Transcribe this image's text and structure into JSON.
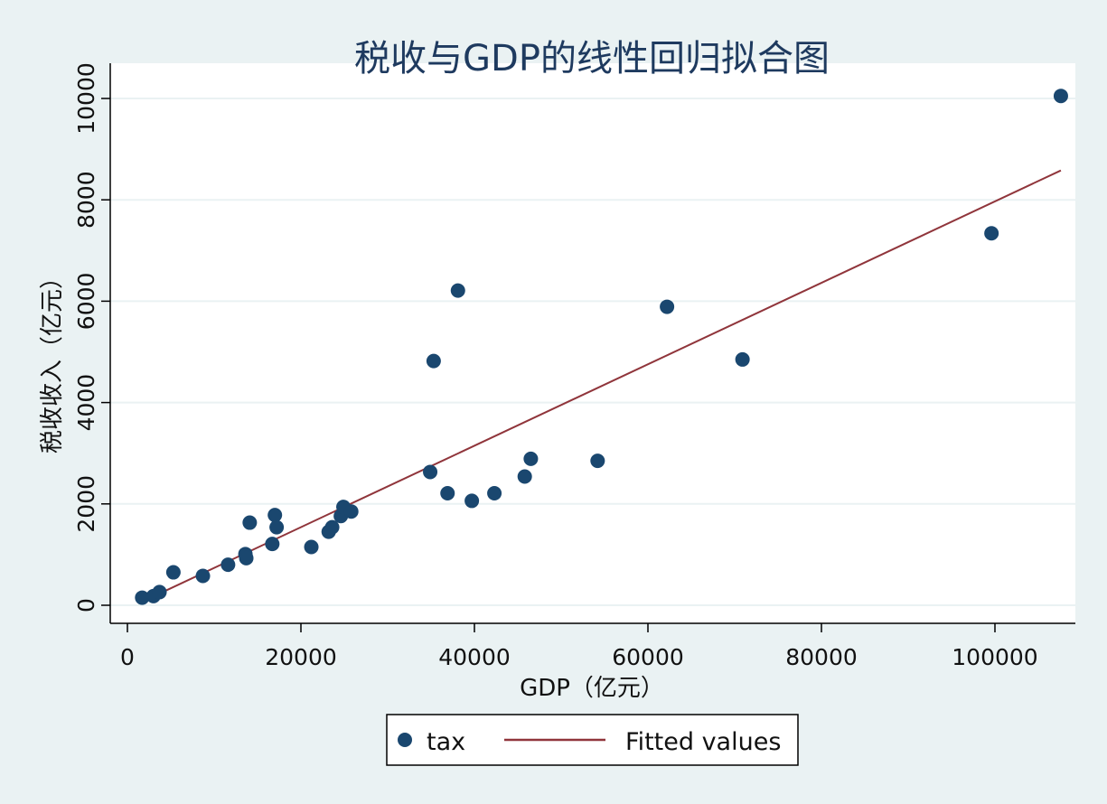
{
  "chart_data": {
    "type": "scatter",
    "title": "税收与GDP的线性回归拟合图",
    "xlabel": "GDP（亿元）",
    "ylabel": "税收收入（亿元）",
    "xlim": [
      0,
      110000
    ],
    "ylim": [
      0,
      10000
    ],
    "xticks": [
      0,
      20000,
      40000,
      60000,
      80000,
      100000
    ],
    "yticks": [
      0,
      2000,
      4000,
      6000,
      8000,
      10000
    ],
    "xtick_labels": [
      "0",
      "20000",
      "40000",
      "60000",
      "80000",
      "100000"
    ],
    "ytick_labels": [
      "0",
      "2000",
      "4000",
      "6000",
      "8000",
      "10000"
    ],
    "grid": "horizontal",
    "legend_position": "bottom",
    "series": [
      {
        "name": "tax",
        "kind": "scatter",
        "color": "#1a476f",
        "points": [
          [
            1700,
            150
          ],
          [
            3000,
            180
          ],
          [
            3700,
            260
          ],
          [
            5300,
            650
          ],
          [
            8700,
            580
          ],
          [
            11600,
            800
          ],
          [
            13600,
            1010
          ],
          [
            13700,
            930
          ],
          [
            14100,
            1630
          ],
          [
            16700,
            1210
          ],
          [
            17000,
            1780
          ],
          [
            17200,
            1540
          ],
          [
            21200,
            1150
          ],
          [
            23200,
            1450
          ],
          [
            23600,
            1540
          ],
          [
            24600,
            1760
          ],
          [
            24900,
            1940
          ],
          [
            25800,
            1850
          ],
          [
            34900,
            2630
          ],
          [
            35300,
            4820
          ],
          [
            36900,
            2210
          ],
          [
            38100,
            6210
          ],
          [
            39700,
            2060
          ],
          [
            42300,
            2210
          ],
          [
            45800,
            2540
          ],
          [
            46500,
            2890
          ],
          [
            54200,
            2850
          ],
          [
            62200,
            5890
          ],
          [
            70900,
            4850
          ],
          [
            99600,
            7340
          ],
          [
            107600,
            10050
          ]
        ]
      },
      {
        "name": "Fitted values",
        "kind": "line",
        "color": "#90353b",
        "points": [
          [
            1700,
            70
          ],
          [
            107600,
            8580
          ]
        ]
      }
    ]
  }
}
